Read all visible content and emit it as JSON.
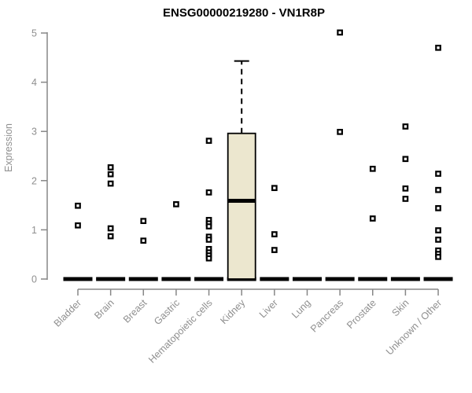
{
  "header": {
    "title": "ENSG00000219280 - VN1R8P"
  },
  "chart_data": {
    "type": "boxplot",
    "title": "ENSG00000219280 - VN1R8P",
    "ylabel": "Expression",
    "xlabel": "",
    "ylim": [
      0,
      5
    ],
    "yticks": [
      0,
      1,
      2,
      3,
      4,
      5
    ],
    "grid": false,
    "legend": "none",
    "point_marker": "open-square",
    "categories": [
      "Bladder",
      "Brain",
      "Breast",
      "Gastric",
      "Hematopoietic cells",
      "Kidney",
      "Liver",
      "Lung",
      "Pancreas",
      "Prostate",
      "Skin",
      "Unknown / Other"
    ],
    "series": [
      {
        "name": "Bladder",
        "zero_cluster": true,
        "points": [
          1.49,
          1.09
        ]
      },
      {
        "name": "Brain",
        "zero_cluster": true,
        "points": [
          2.27,
          2.13,
          1.94,
          1.03,
          0.87
        ]
      },
      {
        "name": "Breast",
        "zero_cluster": true,
        "points": [
          1.18,
          0.78
        ]
      },
      {
        "name": "Gastric",
        "zero_cluster": true,
        "points": [
          1.52
        ]
      },
      {
        "name": "Hematopoietic cells",
        "zero_cluster": true,
        "points": [
          2.81,
          1.76,
          1.2,
          1.13,
          1.07,
          0.86,
          0.8,
          0.61,
          0.54,
          0.48,
          0.42
        ]
      },
      {
        "name": "Kidney",
        "zero_cluster": true,
        "points": [],
        "box": {
          "q1": 0,
          "median": 1.59,
          "q3": 2.96,
          "whisker_low": 0,
          "whisker_high": 4.43
        }
      },
      {
        "name": "Liver",
        "zero_cluster": true,
        "points": [
          1.85,
          0.91,
          0.59
        ]
      },
      {
        "name": "Lung",
        "zero_cluster": true,
        "points": []
      },
      {
        "name": "Pancreas",
        "zero_cluster": true,
        "points": [
          5.01,
          2.99
        ]
      },
      {
        "name": "Prostate",
        "zero_cluster": true,
        "points": [
          2.24,
          1.23
        ]
      },
      {
        "name": "Skin",
        "zero_cluster": true,
        "points": [
          3.1,
          2.44,
          1.84,
          1.63
        ]
      },
      {
        "name": "Unknown / Other",
        "zero_cluster": true,
        "points": [
          4.7,
          2.14,
          1.81,
          1.44,
          0.99,
          0.8,
          0.58,
          0.51,
          0.45
        ]
      }
    ],
    "colors": {
      "background": "#ffffff",
      "axis": "#878787",
      "tick_label": "#8f8f8f",
      "title": "#000000",
      "point": "#000000",
      "box_fill": "#ece7cf",
      "box_border": "#000000",
      "median": "#000000",
      "zero_dash": "#000000"
    }
  }
}
